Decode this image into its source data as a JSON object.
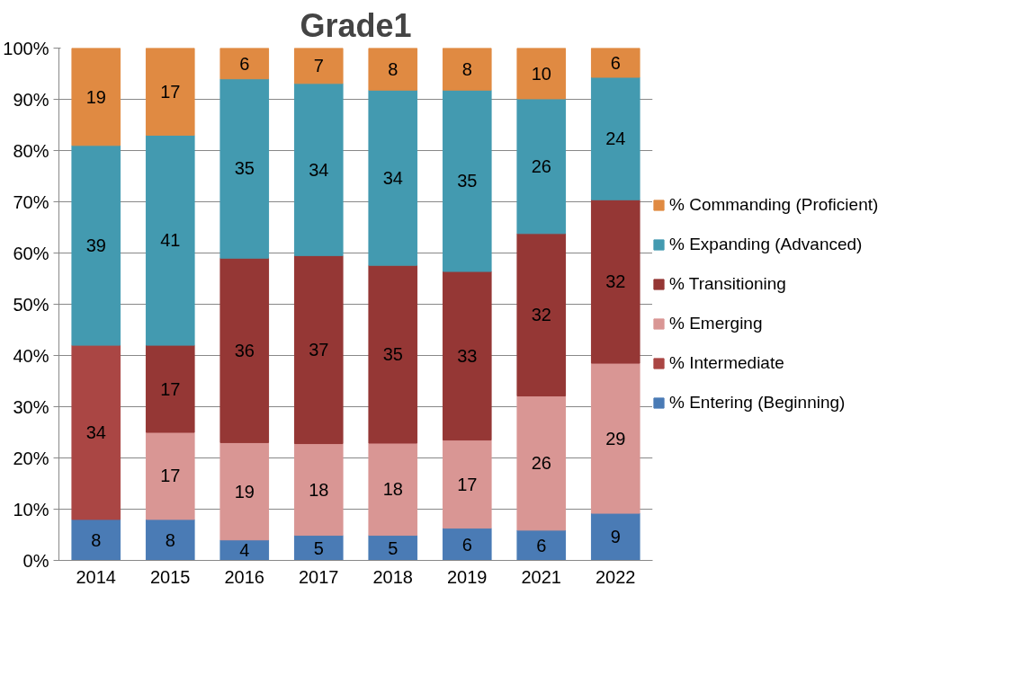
{
  "chart_data": {
    "type": "bar",
    "title": "Grade1",
    "stacked": true,
    "categories": [
      "2014",
      "2015",
      "2016",
      "2017",
      "2018",
      "2019",
      "2021",
      "2022"
    ],
    "series": [
      {
        "name": "% Entering (Beginning)",
        "color": "#4a7bb5",
        "values": [
          8,
          8,
          4,
          4.9,
          4.9,
          6.3,
          5.9,
          9.2
        ],
        "value_labels": [
          "8",
          "8",
          "4",
          "5",
          "5",
          "6",
          "6",
          "9"
        ]
      },
      {
        "name": "% Intermediate",
        "color": "#aa4644",
        "values": [
          34,
          null,
          null,
          null,
          null,
          null,
          null,
          null
        ],
        "value_labels": [
          "34",
          null,
          null,
          null,
          null,
          null,
          null,
          null
        ]
      },
      {
        "name": "% Emerging",
        "color": "#d99694",
        "values": [
          null,
          17,
          19,
          17.9,
          18,
          17.2,
          26.2,
          29.3
        ],
        "value_labels": [
          null,
          "17",
          "19",
          "18",
          "18",
          "17",
          "26",
          "29"
        ]
      },
      {
        "name": "% Transitioning",
        "color": "#953735",
        "values": [
          null,
          17,
          36,
          36.7,
          34.7,
          32.9,
          31.7,
          31.9
        ],
        "value_labels": [
          null,
          "17",
          "36",
          "37",
          "35",
          "33",
          "32",
          "32"
        ]
      },
      {
        "name": "% Expanding (Advanced)",
        "color": "#439ab0",
        "values": [
          39,
          41,
          35,
          33.6,
          34.2,
          35.4,
          26.3,
          23.9
        ],
        "value_labels": [
          "39",
          "41",
          "35",
          "34",
          "34",
          "35",
          "26",
          "24"
        ]
      },
      {
        "name": "% Commanding (Proficient)",
        "color": "#e08a42",
        "values": [
          19,
          17,
          6,
          6.9,
          8.2,
          8.2,
          9.9,
          5.7
        ],
        "value_labels": [
          "19",
          "17",
          "6",
          "7",
          "8",
          "8",
          "10",
          "6"
        ]
      }
    ],
    "ylim": [
      0,
      100
    ],
    "yticks": [
      {
        "value": 0,
        "label": "0%"
      },
      {
        "value": 10,
        "label": "10%"
      },
      {
        "value": 20,
        "label": "20%"
      },
      {
        "value": 30,
        "label": "30%"
      },
      {
        "value": 40,
        "label": "40%"
      },
      {
        "value": 50,
        "label": "50%"
      },
      {
        "value": 60,
        "label": "60%"
      },
      {
        "value": 70,
        "label": "70%"
      },
      {
        "value": 80,
        "label": "80%"
      },
      {
        "value": 90,
        "label": "90%"
      },
      {
        "value": 100,
        "label": "100%"
      }
    ],
    "grid": "y",
    "legend": "right"
  }
}
